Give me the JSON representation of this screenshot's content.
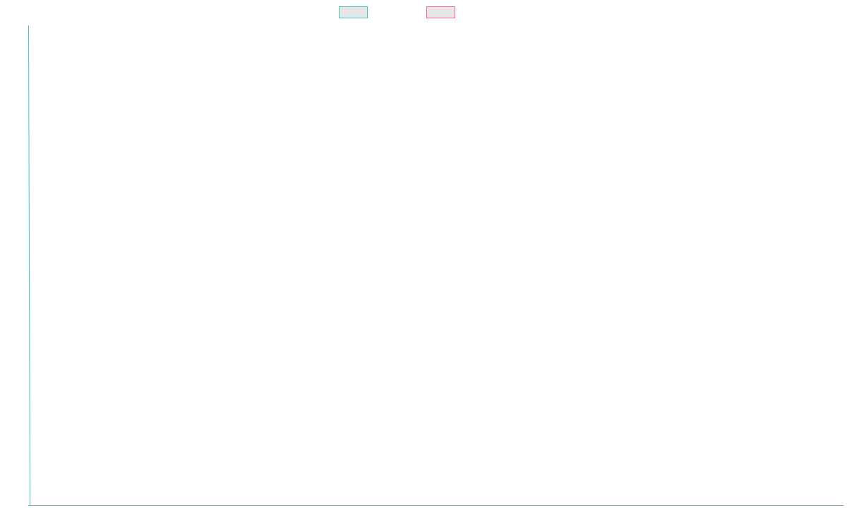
{
  "chart_data": {
    "type": "line",
    "title": "",
    "xlabel": "",
    "ylabel": "",
    "categories": [],
    "series": [
      {
        "name": "",
        "values": [],
        "color": "#4bc0c0",
        "fill": "#e6e6e6"
      },
      {
        "name": "",
        "values": [],
        "color": "#ff6384",
        "fill": "#e6e6e6"
      }
    ],
    "grid": false,
    "legend_position": "top",
    "axis_color": "#4bc0c0",
    "x_axis_color": "#7f9fb0"
  }
}
